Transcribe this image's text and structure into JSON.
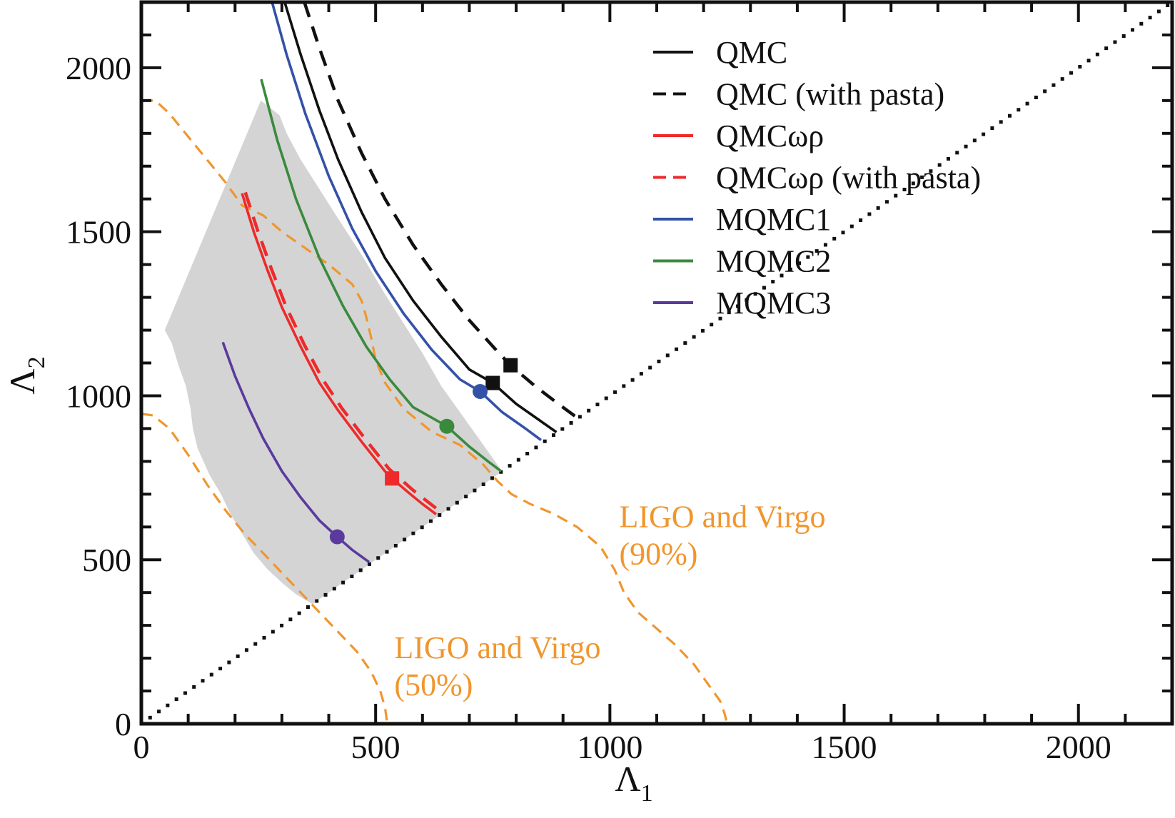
{
  "chart_data": {
    "type": "line",
    "title": "",
    "xlabel": "Λ",
    "xlabel_subscript": "1",
    "ylabel": "Λ",
    "ylabel_subscript": "2",
    "xlim": [
      0,
      2200
    ],
    "ylim": [
      0,
      2200
    ],
    "x_major_ticks": [
      0,
      500,
      1000,
      1500,
      2000
    ],
    "x_tick_labels": [
      "0",
      "500",
      "1000",
      "1500",
      "2000"
    ],
    "y_major_ticks": [
      0,
      500,
      1000,
      1500,
      2000
    ],
    "y_tick_labels": [
      "0",
      "500",
      "1000",
      "1500",
      "2000"
    ],
    "minor_tick_step": 100,
    "grid": false,
    "legend_position": "top-right",
    "shaded_region": {
      "name": "allowed-region",
      "color": "#d4d4d4",
      "points": [
        [
          50,
          1200
        ],
        [
          255,
          1900
        ],
        [
          295,
          1855
        ],
        [
          310,
          1800
        ],
        [
          340,
          1720
        ],
        [
          380,
          1630
        ],
        [
          420,
          1540
        ],
        [
          470,
          1430
        ],
        [
          520,
          1310
        ],
        [
          560,
          1220
        ],
        [
          600,
          1130
        ],
        [
          640,
          1030
        ],
        [
          680,
          950
        ],
        [
          720,
          870
        ],
        [
          760,
          790
        ],
        [
          770,
          770
        ],
        [
          365,
          365
        ],
        [
          330,
          395
        ],
        [
          300,
          430
        ],
        [
          270,
          470
        ],
        [
          240,
          520
        ],
        [
          215,
          580
        ],
        [
          190,
          640
        ],
        [
          170,
          700
        ],
        [
          145,
          760
        ],
        [
          120,
          840
        ],
        [
          110,
          900
        ],
        [
          105,
          960
        ],
        [
          95,
          1030
        ],
        [
          80,
          1090
        ],
        [
          65,
          1160
        ]
      ]
    },
    "diagonal": {
      "name": "Λ1 = Λ2",
      "style": "dotted",
      "color": "#111111",
      "from": [
        0,
        0
      ],
      "to": [
        2200,
        2200
      ]
    },
    "series": [
      {
        "name": "QMC",
        "color": "#111111",
        "style": "solid",
        "x": [
          306,
          340,
          380,
          420,
          470,
          520,
          580,
          640,
          700,
          750,
          800,
          850,
          886
        ],
        "y": [
          2200,
          2040,
          1870,
          1720,
          1560,
          1420,
          1290,
          1180,
          1080,
          1039,
          975,
          925,
          889
        ],
        "marker": {
          "shape": "square",
          "x": 750,
          "y": 1039
        }
      },
      {
        "name": "QMC (with pasta)",
        "color": "#111111",
        "style": "dashed",
        "x": [
          348,
          380,
          420,
          470,
          520,
          580,
          640,
          700,
          760,
          788,
          840,
          890,
          930
        ],
        "y": [
          2200,
          2060,
          1900,
          1740,
          1600,
          1460,
          1340,
          1230,
          1135,
          1093,
          1030,
          975,
          933
        ],
        "marker": {
          "shape": "square",
          "x": 788,
          "y": 1093
        }
      },
      {
        "name": "QMCωρ",
        "color": "#ee2a2a",
        "style": "solid",
        "x": [
          215,
          240,
          270,
          300,
          340,
          380,
          420,
          470,
          520,
          535,
          570,
          600,
          629
        ],
        "y": [
          1617,
          1500,
          1380,
          1270,
          1150,
          1040,
          955,
          860,
          770,
          748,
          705,
          670,
          639
        ],
        "marker": {
          "shape": "square",
          "x": 535,
          "y": 748
        }
      },
      {
        "name": "QMCωρ (with pasta)",
        "color": "#ee2a2a",
        "style": "dashed",
        "x": [
          222,
          248,
          278,
          308,
          348,
          388,
          428,
          478,
          528,
          545,
          580,
          610,
          640
        ],
        "y": [
          1620,
          1505,
          1385,
          1275,
          1155,
          1048,
          962,
          868,
          778,
          756,
          712,
          678,
          645
        ],
        "marker": null
      },
      {
        "name": "MQMC1",
        "color": "#3451a8",
        "style": "solid",
        "x": [
          279,
          310,
          350,
          400,
          450,
          500,
          560,
          620,
          680,
          723,
          770,
          820,
          853
        ],
        "y": [
          2200,
          2040,
          1860,
          1670,
          1510,
          1380,
          1250,
          1140,
          1050,
          1013,
          950,
          900,
          865
        ],
        "marker": {
          "shape": "circle",
          "x": 723,
          "y": 1013
        }
      },
      {
        "name": "MQMC2",
        "color": "#3a8a3e",
        "style": "solid",
        "x": [
          256,
          290,
          330,
          380,
          430,
          480,
          530,
          580,
          630,
          652,
          700,
          740,
          768
        ],
        "y": [
          1965,
          1780,
          1600,
          1420,
          1275,
          1150,
          1050,
          965,
          925,
          907,
          845,
          800,
          770
        ],
        "marker": {
          "shape": "circle",
          "x": 652,
          "y": 907
        }
      },
      {
        "name": "MQMC3",
        "color": "#5b3a9e",
        "style": "solid",
        "x": [
          174,
          200,
          230,
          260,
          300,
          340,
          380,
          418,
          450,
          486
        ],
        "y": [
          1163,
          1060,
          960,
          870,
          770,
          690,
          620,
          570,
          530,
          493
        ],
        "marker": {
          "shape": "circle",
          "x": 418,
          "y": 570
        }
      }
    ],
    "contours": [
      {
        "name": "LIGO and Virgo (90%)",
        "color": "#f0962e",
        "style": "dashed",
        "x": [
          0,
          30,
          60,
          100,
          140,
          180,
          215,
          260,
          300,
          350,
          400,
          450,
          470,
          480,
          490,
          500,
          520,
          560,
          620,
          680,
          730,
          760,
          790,
          830,
          880,
          930,
          980,
          1010,
          1030,
          1060,
          1100,
          1140,
          1180,
          1210,
          1235,
          1245,
          1250
        ],
        "y": [
          1900,
          1900,
          1860,
          1790,
          1720,
          1650,
          1580,
          1550,
          1500,
          1450,
          1400,
          1340,
          1290,
          1240,
          1180,
          1110,
          1040,
          960,
          890,
          850,
          790,
          740,
          700,
          670,
          640,
          600,
          540,
          470,
          400,
          340,
          290,
          240,
          180,
          120,
          70,
          30,
          0
        ]
      },
      {
        "name": "LIGO and Virgo (50%)",
        "color": "#f0962e",
        "style": "dashed",
        "x": [
          0,
          25,
          60,
          100,
          140,
          180,
          220,
          260,
          300,
          340,
          380,
          420,
          460,
          490,
          510,
          520,
          525
        ],
        "y": [
          945,
          940,
          900,
          820,
          730,
          650,
          580,
          520,
          460,
          400,
          340,
          280,
          220,
          160,
          100,
          50,
          0
        ]
      }
    ],
    "annotations": [
      {
        "name": "ligo-virgo-90-label",
        "lines": [
          "LIGO and Virgo",
          "(90%)"
        ],
        "color": "#f0962e",
        "x": 1020,
        "y": 600
      },
      {
        "name": "ligo-virgo-50-label",
        "lines": [
          "LIGO and Virgo",
          "(50%)"
        ],
        "color": "#f0962e",
        "x": 540,
        "y": 200
      }
    ],
    "legend": [
      {
        "label": "QMC",
        "color": "#111111",
        "style": "solid"
      },
      {
        "label": "QMC (with pasta)",
        "color": "#111111",
        "style": "dashed"
      },
      {
        "label": "QMCωρ",
        "color": "#ee2a2a",
        "style": "solid"
      },
      {
        "label": "QMCωρ (with pasta)",
        "color": "#ee2a2a",
        "style": "dashed"
      },
      {
        "label": "MQMC1",
        "color": "#3451a8",
        "style": "solid"
      },
      {
        "label": "MQMC2",
        "color": "#3a8a3e",
        "style": "solid"
      },
      {
        "label": "MQMC3",
        "color": "#5b3a9e",
        "style": "solid"
      }
    ]
  }
}
